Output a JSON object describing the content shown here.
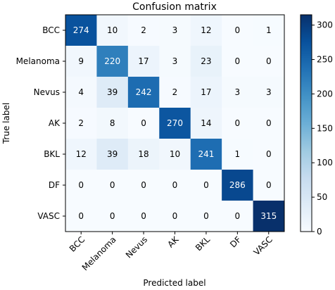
{
  "chart_data": {
    "type": "heatmap",
    "title": "Confusion matrix",
    "xlabel": "Predicted label",
    "ylabel": "True label",
    "x_categories": [
      "BCC",
      "Melanoma",
      "Nevus",
      "AK",
      "BKL",
      "DF",
      "VASC"
    ],
    "y_categories": [
      "BCC",
      "Melanoma",
      "Nevus",
      "AK",
      "BKL",
      "DF",
      "VASC"
    ],
    "values": [
      [
        274,
        10,
        2,
        3,
        12,
        0,
        1
      ],
      [
        9,
        220,
        17,
        3,
        23,
        0,
        0
      ],
      [
        4,
        39,
        242,
        2,
        17,
        3,
        3
      ],
      [
        2,
        8,
        0,
        270,
        14,
        0,
        0
      ],
      [
        12,
        39,
        18,
        10,
        241,
        1,
        0
      ],
      [
        0,
        0,
        0,
        0,
        0,
        286,
        0
      ],
      [
        0,
        0,
        0,
        0,
        0,
        0,
        315
      ]
    ],
    "colormap": "Blues",
    "colorbar": {
      "range": [
        0,
        315
      ],
      "ticks": [
        "0",
        "50",
        "100",
        "150",
        "200",
        "250",
        "300"
      ]
    }
  }
}
